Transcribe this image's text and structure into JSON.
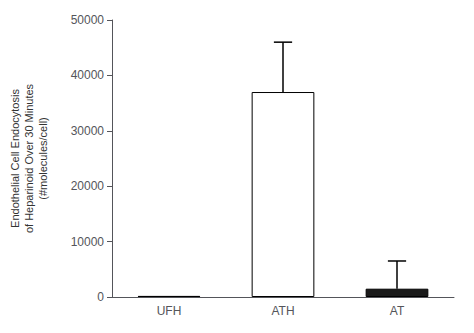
{
  "chart_data": {
    "type": "bar",
    "categories": [
      "UFH",
      "ATH",
      "AT"
    ],
    "values": [
      200,
      37000,
      1500
    ],
    "errors_up": [
      0,
      9000,
      5000
    ],
    "colors": [
      "#ffffff",
      "#ffffff",
      "#1a1a1a"
    ],
    "ylabel": "Endothelial Cell Endocytosis\nof Heparinoid Over 30 Minutes\n(#molecules/cell)",
    "ylim": [
      0,
      50000
    ],
    "yticks": [
      0,
      10000,
      20000,
      30000,
      40000,
      50000
    ],
    "grid": false
  }
}
